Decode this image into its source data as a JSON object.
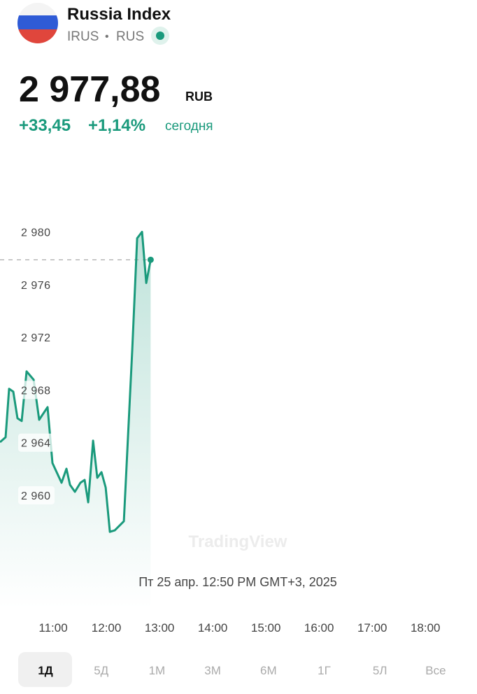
{
  "header": {
    "title": "Russia Index",
    "ticker": "IRUS",
    "separator": "•",
    "exchange": "RUS"
  },
  "price": {
    "value": "2 977,88",
    "currency": "RUB"
  },
  "change": {
    "absolute": "+33,45",
    "percent": "+1,14%",
    "period": "сегодня"
  },
  "chart_data": {
    "type": "line",
    "x": [
      10.0,
      10.105,
      10.171,
      10.25,
      10.329,
      10.408,
      10.5,
      10.632,
      10.737,
      10.895,
      10.987,
      11.158,
      11.25,
      11.316,
      11.408,
      11.513,
      11.592,
      11.658,
      11.75,
      11.829,
      11.908,
      11.987,
      12.066,
      12.158,
      12.329,
      12.487,
      12.579,
      12.671,
      12.75,
      12.833
    ],
    "series": [
      {
        "color": "#1a9a7c",
        "values": [
          2964.04,
          2964.41,
          2968.09,
          2967.87,
          2965.85,
          2965.64,
          2969.41,
          2968.78,
          2965.74,
          2966.7,
          2962.45,
          2960.96,
          2962.02,
          2960.8,
          2960.27,
          2960.96,
          2961.17,
          2959.47,
          2964.15,
          2961.33,
          2961.76,
          2960.59,
          2957.23,
          2957.34,
          2958.03,
          2971.06,
          2979.52,
          2980.0,
          2976.12,
          2977.88
        ]
      }
    ],
    "xlim": [
      10.0,
      18.97
    ],
    "ylim": [
      2951.4,
      2982.2
    ],
    "xticks": [
      {
        "value": 11,
        "label": "11:00"
      },
      {
        "value": 12,
        "label": "12:00"
      },
      {
        "value": 13,
        "label": "13:00"
      },
      {
        "value": 14,
        "label": "14:00"
      },
      {
        "value": 15,
        "label": "15:00"
      },
      {
        "value": 16,
        "label": "16:00"
      },
      {
        "value": 17,
        "label": "17:00"
      },
      {
        "value": 18,
        "label": "18:00"
      }
    ],
    "yticks": [
      {
        "value": 2960,
        "label": "2 960"
      },
      {
        "value": 2964,
        "label": "2 964"
      },
      {
        "value": 2968,
        "label": "2 968"
      },
      {
        "value": 2972,
        "label": "2 972"
      },
      {
        "value": 2976,
        "label": "2 976"
      },
      {
        "value": 2980,
        "label": "2 980"
      }
    ],
    "watermark": "TradingView",
    "annotation": "Пт 25 апр. 12:50 PM GMT+3, 2025"
  },
  "periods": [
    "1Д",
    "5Д",
    "1М",
    "3М",
    "6М",
    "1Г",
    "5Л",
    "Все"
  ]
}
